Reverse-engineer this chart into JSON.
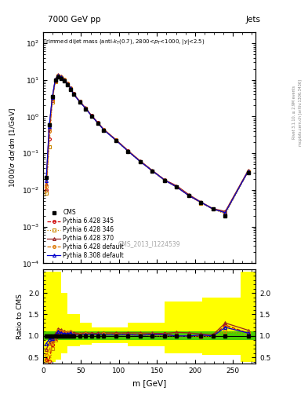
{
  "title_top": "7000 GeV pp",
  "title_right": "Jets",
  "watermark": "CMS_2013_I1224539",
  "ylabel_main": "1000/σ dσ/dm [1/GeV]",
  "ylabel_ratio": "Ratio to CMS",
  "xlabel": "m [GeV]",
  "rivet_label": "Rivet 3.1.10, ≥ 2.9M events",
  "mcplots_label": "mcplots.cern.ch [arXiv:1306.3436]",
  "ylim_main": [
    0.0001,
    200
  ],
  "ylim_ratio": [
    0.35,
    2.55
  ],
  "xlim": [
    0,
    280
  ],
  "cms_x": [
    4,
    8,
    12,
    16,
    20,
    24,
    28,
    32,
    36,
    40,
    48,
    56,
    64,
    72,
    80,
    96,
    112,
    128,
    144,
    160,
    176,
    192,
    208,
    224,
    240,
    270
  ],
  "cms_y": [
    0.022,
    0.6,
    3.5,
    10.0,
    12.0,
    11.0,
    9.5,
    7.5,
    5.5,
    4.0,
    2.5,
    1.6,
    1.0,
    0.65,
    0.42,
    0.22,
    0.11,
    0.058,
    0.032,
    0.018,
    0.012,
    0.007,
    0.0045,
    0.003,
    0.002,
    0.03
  ],
  "py6_345_y": [
    0.01,
    0.25,
    2.8,
    9.5,
    13.0,
    12.0,
    10.0,
    8.0,
    6.0,
    4.2,
    2.6,
    1.7,
    1.05,
    0.68,
    0.44,
    0.23,
    0.115,
    0.06,
    0.033,
    0.019,
    0.012,
    0.007,
    0.0045,
    0.003,
    0.0025,
    0.032
  ],
  "py6_346_y": [
    0.008,
    0.15,
    2.5,
    9.0,
    12.5,
    11.5,
    9.8,
    7.8,
    5.8,
    4.0,
    2.55,
    1.65,
    1.02,
    0.66,
    0.43,
    0.225,
    0.112,
    0.059,
    0.032,
    0.018,
    0.012,
    0.007,
    0.0044,
    0.003,
    0.0022,
    0.031
  ],
  "py6_370_y": [
    0.015,
    0.5,
    3.2,
    10.5,
    14.0,
    12.5,
    10.5,
    8.2,
    6.1,
    4.3,
    2.65,
    1.72,
    1.06,
    0.69,
    0.45,
    0.235,
    0.118,
    0.062,
    0.034,
    0.019,
    0.013,
    0.0075,
    0.0047,
    0.0031,
    0.0026,
    0.034
  ],
  "py6_def_y": [
    0.012,
    0.4,
    3.0,
    10.0,
    13.5,
    12.2,
    10.2,
    8.0,
    6.0,
    4.15,
    2.58,
    1.68,
    1.04,
    0.67,
    0.44,
    0.228,
    0.114,
    0.06,
    0.033,
    0.0185,
    0.012,
    0.007,
    0.0046,
    0.003,
    0.0024,
    0.032
  ],
  "py8_def_y": [
    0.018,
    0.55,
    3.3,
    10.2,
    13.2,
    11.8,
    10.0,
    7.9,
    5.9,
    4.1,
    2.55,
    1.66,
    1.03,
    0.67,
    0.43,
    0.225,
    0.113,
    0.059,
    0.033,
    0.0185,
    0.012,
    0.007,
    0.0046,
    0.003,
    0.0024,
    0.032
  ],
  "ratio_py6_345": [
    0.45,
    0.42,
    0.8,
    0.95,
    1.08,
    1.09,
    1.05,
    1.07,
    1.09,
    1.05,
    1.04,
    1.06,
    1.05,
    1.05,
    1.048,
    1.045,
    1.045,
    1.034,
    1.031,
    1.056,
    1.0,
    1.0,
    1.0,
    1.0,
    1.25,
    1.067
  ],
  "ratio_py6_346": [
    0.36,
    0.25,
    0.71,
    0.9,
    1.04,
    1.045,
    1.03,
    1.04,
    1.055,
    1.0,
    1.02,
    1.03,
    1.02,
    1.015,
    1.024,
    1.023,
    1.018,
    1.017,
    1.0,
    1.0,
    1.0,
    1.0,
    0.978,
    1.0,
    1.1,
    1.033
  ],
  "ratio_py6_370": [
    0.68,
    0.83,
    0.91,
    1.05,
    1.17,
    1.136,
    1.105,
    1.093,
    1.109,
    1.075,
    1.06,
    1.075,
    1.06,
    1.062,
    1.071,
    1.068,
    1.073,
    1.069,
    1.063,
    1.056,
    1.083,
    1.071,
    1.044,
    1.033,
    1.3,
    1.133
  ],
  "ratio_py6_def": [
    0.55,
    0.67,
    0.86,
    1.0,
    1.125,
    1.109,
    1.074,
    1.067,
    1.091,
    1.038,
    1.032,
    1.05,
    1.04,
    1.031,
    1.048,
    1.036,
    1.036,
    1.034,
    1.031,
    1.028,
    1.0,
    1.0,
    1.022,
    1.0,
    1.2,
    1.067
  ],
  "ratio_py8_def": [
    0.82,
    0.92,
    0.94,
    1.02,
    1.1,
    1.073,
    1.053,
    1.053,
    1.073,
    1.025,
    1.02,
    1.038,
    1.03,
    1.031,
    1.024,
    1.023,
    1.027,
    1.017,
    1.031,
    1.028,
    1.0,
    1.0,
    1.022,
    1.0,
    1.2,
    1.067
  ],
  "yellow_band_edges": [
    0,
    8,
    16,
    24,
    32,
    48,
    64,
    80,
    112,
    160,
    210,
    260,
    280
  ],
  "yellow_band_lo": [
    0.4,
    0.4,
    0.45,
    0.6,
    0.75,
    0.8,
    0.83,
    0.83,
    0.75,
    0.6,
    0.55,
    0.4,
    0.4
  ],
  "yellow_band_hi": [
    2.5,
    2.5,
    2.5,
    2.0,
    1.5,
    1.3,
    1.2,
    1.2,
    1.3,
    1.8,
    1.9,
    2.5,
    2.5
  ],
  "green_band_lo": 0.9,
  "green_band_hi": 1.1,
  "color_cms": "#000000",
  "color_py6_345": "#cc0000",
  "color_py6_346": "#cc8800",
  "color_py6_370": "#992222",
  "color_py6_def": "#dd7700",
  "color_py8_def": "#0000cc"
}
